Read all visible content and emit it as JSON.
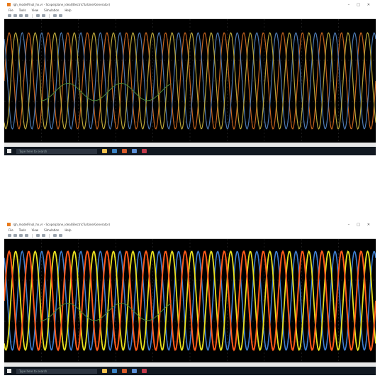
{
  "screenshots": [
    {
      "window": {
        "title": "rgh_modelFinal_hx.vr - Scope/plane_ideal(ElectricTurbine/Generator)",
        "menu": [
          "File",
          "Tools",
          "View",
          "Simulation",
          "Help"
        ],
        "controls": [
          "–",
          "□",
          "✕"
        ]
      },
      "statusbar": {
        "left": "",
        "right": ""
      },
      "taskbar": {
        "search_placeholder": "Type here to search",
        "clock": ""
      },
      "scope": {
        "background": "#000000",
        "grid_color": "#3a3a3a",
        "traces": [
          {
            "name": "orange-trace",
            "color": "#c8651e",
            "cycles": 19,
            "amplitude": 0.78,
            "phase": 0.0,
            "width": 1.2
          },
          {
            "name": "blue-trace",
            "color": "#4d79b0",
            "cycles": 19,
            "amplitude": 0.78,
            "phase": 2.09,
            "width": 1.2
          },
          {
            "name": "yellow-trace",
            "color": "#b9a53a",
            "cycles": 19,
            "amplitude": 0.78,
            "phase": 4.19,
            "width": 1.2
          },
          {
            "name": "green-trace",
            "color": "#4e8a3a",
            "cycles": 7,
            "amplitude": 0.14,
            "phase": 0.3,
            "width": 1.0,
            "x_start": 0.1,
            "x_end": 0.45,
            "y_offset": -0.18
          }
        ]
      }
    },
    {
      "window": {
        "title": "rgh_modelFinal_hx.vr - Scope/plane_ideal(ElectricTurbine/Generator)",
        "menu": [
          "File",
          "Tools",
          "View",
          "Simulation",
          "Help"
        ],
        "controls": [
          "–",
          "□",
          "✕"
        ]
      },
      "statusbar": {
        "left": "",
        "right": ""
      },
      "taskbar": {
        "search_placeholder": "Type here to search",
        "clock": ""
      },
      "scope": {
        "background": "#000000",
        "grid_color": "#3a3a3a",
        "traces": [
          {
            "name": "blue-trace",
            "color": "#3f7fd0",
            "cycles": 19,
            "amplitude": 0.8,
            "phase": 2.09,
            "width": 1.6
          },
          {
            "name": "yellow-trace",
            "color": "#e8e020",
            "cycles": 19,
            "amplitude": 0.8,
            "phase": 4.19,
            "width": 1.8
          },
          {
            "name": "orange-trace",
            "color": "#ff5a1a",
            "cycles": 19,
            "amplitude": 0.8,
            "phase": 0.0,
            "width": 2.0
          },
          {
            "name": "green-trace",
            "color": "#4e8a3a",
            "cycles": 7,
            "amplitude": 0.14,
            "phase": 0.3,
            "width": 1.0,
            "x_start": 0.1,
            "x_end": 0.45,
            "y_offset": -0.18
          }
        ]
      }
    }
  ]
}
